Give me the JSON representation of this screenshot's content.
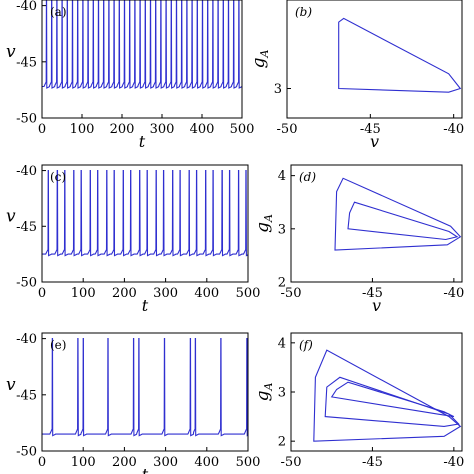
{
  "chart_data": [
    {
      "type": "line",
      "panel_label": "(a)",
      "xlabel": "t",
      "ylabel": "v",
      "xlim": [
        0,
        500
      ],
      "ylim": [
        -50,
        -39.5
      ],
      "xticks": [
        "0",
        "100",
        "200",
        "300",
        "400",
        "500"
      ],
      "yticks": [
        "-50",
        "-45",
        "-40"
      ],
      "series": [
        {
          "color": "#2f2fd0",
          "x": [
            0,
            500
          ],
          "y": [
            -47.2,
            -39.5
          ],
          "spike_times": [
            11,
            24,
            37,
            50,
            63,
            76,
            89,
            102,
            115,
            128,
            141,
            154,
            167,
            180,
            193,
            206,
            219,
            232,
            245,
            258,
            271,
            284,
            297,
            310,
            323,
            336,
            349,
            362,
            375,
            388,
            401,
            414,
            427,
            440,
            453,
            466,
            479,
            492
          ],
          "baseline": -47.2,
          "spike_peak": -39.5
        }
      ]
    },
    {
      "type": "line",
      "panel_label": "(b)",
      "xlabel": "v",
      "ylabel": "g_A",
      "xlim": [
        -50,
        -39.5
      ],
      "ylim": [
        2.6,
        4.2
      ],
      "xticks": [
        "-50",
        "-45",
        "-40"
      ],
      "yticks": [
        "3"
      ],
      "series": [
        {
          "color": "#2f2fd0",
          "x": [
            -46.9,
            -46.9,
            -46.6,
            -40.3,
            -39.6,
            -40.3,
            -46.9
          ],
          "y": [
            3.0,
            3.9,
            3.95,
            3.2,
            3.0,
            2.95,
            3.0
          ]
        }
      ]
    },
    {
      "type": "line",
      "panel_label": "(c)",
      "xlabel": "t",
      "ylabel": "v",
      "xlim": [
        0,
        500
      ],
      "ylim": [
        -50,
        -39.5
      ],
      "xticks": [
        "0",
        "100",
        "200",
        "300",
        "400",
        "500"
      ],
      "yticks": [
        "-50",
        "-45",
        "-40"
      ],
      "series": [
        {
          "color": "#2f2fd0",
          "x": [
            0,
            500
          ],
          "y": [
            -47.5,
            -40.0
          ],
          "spike_times": [
            15,
            37,
            55,
            77,
            95,
            117,
            135,
            157,
            175,
            197,
            215,
            237,
            255,
            277,
            295,
            317,
            335,
            357,
            375,
            397,
            415,
            437,
            455,
            477,
            495
          ],
          "baseline": -47.5,
          "spike_peak": -40.0
        }
      ]
    },
    {
      "type": "line",
      "panel_label": "(d)",
      "xlabel": "v",
      "ylabel": "g_A",
      "xlim": [
        -50,
        -39.5
      ],
      "ylim": [
        2,
        4.2
      ],
      "xticks": [
        "-50",
        "-45",
        "-40"
      ],
      "yticks": [
        "2",
        "3",
        "4"
      ],
      "series": [
        {
          "color": "#2f2fd0",
          "x": [
            -47.3,
            -47.2,
            -46.8,
            -40.2,
            -39.6,
            -40.4,
            -47.3
          ],
          "y": [
            2.6,
            3.7,
            3.95,
            3.05,
            2.85,
            2.7,
            2.6
          ]
        },
        {
          "color": "#2f2fd0",
          "x": [
            -46.5,
            -46.4,
            -46.1,
            -40.3,
            -39.8,
            -40.5,
            -46.5
          ],
          "y": [
            3.0,
            3.3,
            3.5,
            2.95,
            2.85,
            2.8,
            3.0
          ]
        }
      ]
    },
    {
      "type": "line",
      "panel_label": "(e)",
      "xlabel": "t",
      "ylabel": "v",
      "xlim": [
        0,
        500
      ],
      "ylim": [
        -50,
        -39.5
      ],
      "xticks": [
        "0",
        "100",
        "200",
        "300",
        "400",
        "500"
      ],
      "yticks": [
        "-50",
        "-45",
        "-40"
      ],
      "series": [
        {
          "color": "#2f2fd0",
          "x": [
            0,
            500
          ],
          "y": [
            -48.5,
            -40.0
          ],
          "spike_times": [
            25,
            87,
            100,
            160,
            222,
            235,
            297,
            360,
            372,
            434,
            497
          ],
          "baseline": -48.5,
          "spike_peak": -40.0
        }
      ]
    },
    {
      "type": "line",
      "panel_label": "(f)",
      "xlabel": "",
      "ylabel": "g_A",
      "xlim": [
        -50,
        -39.5
      ],
      "ylim": [
        1.8,
        4.2
      ],
      "xticks": [
        "-50",
        "-45",
        "-40"
      ],
      "yticks": [
        "2",
        "3",
        "4"
      ],
      "series": [
        {
          "color": "#2f2fd0",
          "x": [
            -48.6,
            -48.5,
            -47.8,
            -40.3,
            -39.6,
            -40.6,
            -48.6
          ],
          "y": [
            2.0,
            3.3,
            3.85,
            2.5,
            2.3,
            2.1,
            2.0
          ]
        },
        {
          "color": "#2f2fd0",
          "x": [
            -47.9,
            -47.8,
            -47.0,
            -40.3,
            -39.7,
            -40.6,
            -47.9
          ],
          "y": [
            2.5,
            3.1,
            3.3,
            2.55,
            2.35,
            2.3,
            2.5
          ]
        },
        {
          "color": "#2f2fd0",
          "x": [
            -47.5,
            -47.2,
            -46.5,
            -40.6,
            -40.0,
            -41.0,
            -47.5
          ],
          "y": [
            2.9,
            3.05,
            3.2,
            2.6,
            2.5,
            2.55,
            2.9
          ]
        }
      ]
    }
  ]
}
